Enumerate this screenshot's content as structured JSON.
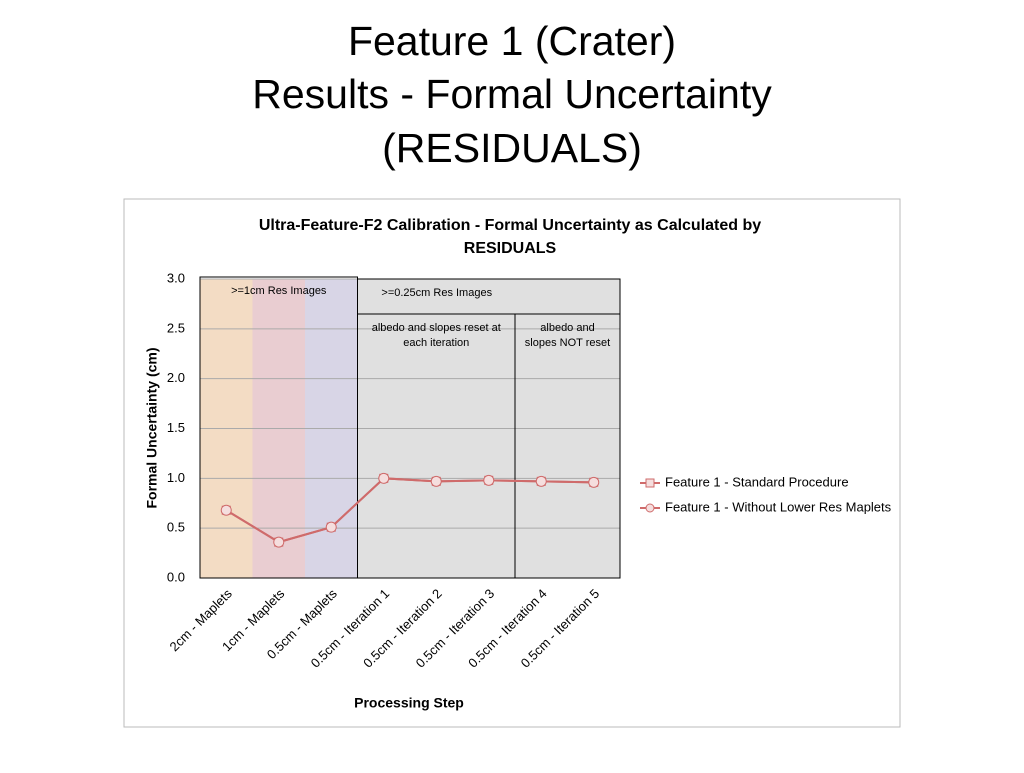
{
  "slide_title": [
    "Feature 1 (Crater)",
    "Results - Formal Uncertainty",
    "(RESIDUALS)"
  ],
  "chart_data": {
    "type": "line",
    "title": [
      "Ultra-Feature-F2 Calibration - Formal Uncertainty as Calculated by",
      "RESIDUALS"
    ],
    "x_label": "Processing Step",
    "y_label": "Formal Uncertainty (cm)",
    "categories": [
      "2cm - Maplets",
      "1cm - Maplets",
      "0.5cm - Maplets",
      "0.5cm - Iteration 1",
      "0.5cm - Iteration 2",
      "0.5cm - Iteration 3",
      "0.5cm - Iteration 4",
      "0.5cm - Iteration 5"
    ],
    "series": [
      {
        "name": "Feature 1 - Standard Procedure",
        "color": "#cf6b6b",
        "marker": "square",
        "values": [
          0.68,
          0.36,
          0.51,
          1.0,
          0.97,
          0.98,
          0.97,
          0.96
        ]
      },
      {
        "name": "Feature 1 - Without Lower Res Maplets",
        "color": "#cf6b6b",
        "marker": "circle",
        "values": [
          0.68,
          0.36,
          0.51,
          1.0,
          0.97,
          0.98,
          0.97,
          0.96
        ]
      }
    ],
    "ylim": [
      0,
      3
    ],
    "yticks": [
      {
        "value": 0,
        "label": "0.0"
      },
      0.5,
      {
        "value": 1,
        "label": "1.0"
      },
      1.5,
      {
        "value": 2,
        "label": "2.0"
      },
      2.5,
      {
        "value": 3,
        "label": "3.0"
      }
    ],
    "grid": true,
    "legend": "right",
    "annotations": [
      ">=1cm Res Images",
      ">=0.25cm Res Images",
      "albedo and slopes reset at",
      "each iteration",
      "albedo and",
      "slopes NOT reset"
    ]
  }
}
